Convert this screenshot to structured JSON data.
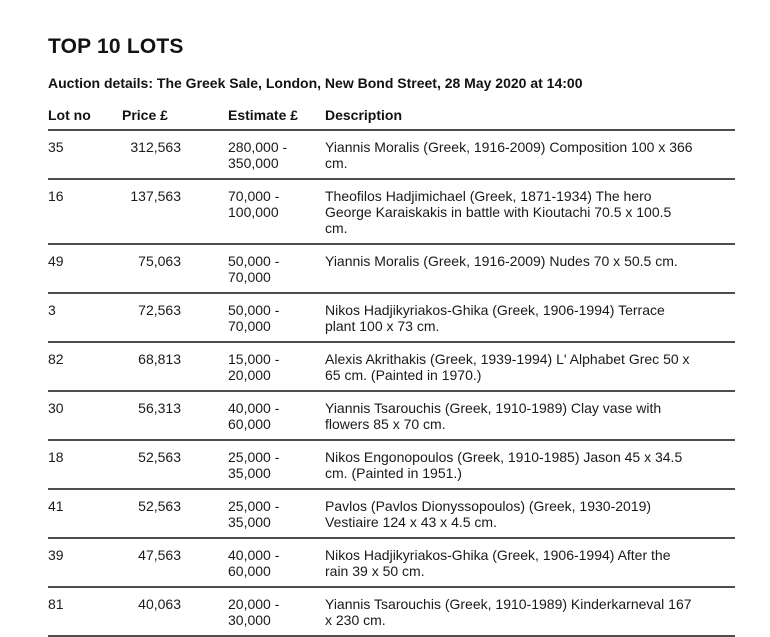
{
  "page": {
    "title": "TOP 10 LOTS",
    "auction_details": "Auction details: The Greek Sale, London, New Bond Street, 28 May 2020 at 14:00"
  },
  "table": {
    "columns": {
      "lot_no": "Lot no",
      "price": "Price £",
      "estimate": "Estimate £",
      "description": "Description"
    },
    "rows": [
      {
        "lot_no": "35",
        "price": "312,563",
        "estimate": "280,000 - 350,000",
        "description": "Yiannis Moralis (Greek, 1916-2009) Composition 100 x 366 cm."
      },
      {
        "lot_no": "16",
        "price": "137,563",
        "estimate": "70,000 - 100,000",
        "description": "Theofilos Hadjimichael (Greek, 1871-1934) The hero George Karaiskakis in battle with Kioutachi 70.5 x 100.5 cm."
      },
      {
        "lot_no": "49",
        "price": "75,063",
        "estimate": "50,000 - 70,000",
        "description": "Yiannis Moralis (Greek, 1916-2009) Nudes 70 x 50.5 cm."
      },
      {
        "lot_no": "3",
        "price": "72,563",
        "estimate": "50,000 - 70,000",
        "description": "Nikos Hadjikyriakos-Ghika (Greek, 1906-1994) Terrace plant 100 x 73 cm."
      },
      {
        "lot_no": "82",
        "price": "68,813",
        "estimate": "15,000 - 20,000",
        "description": "Alexis Akrithakis (Greek, 1939-1994) L' Alphabet Grec 50 x 65 cm. (Painted in 1970.)"
      },
      {
        "lot_no": "30",
        "price": "56,313",
        "estimate": "40,000 - 60,000",
        "description": "Yiannis Tsarouchis (Greek, 1910-1989) Clay vase with flowers 85 x 70 cm."
      },
      {
        "lot_no": "18",
        "price": "52,563",
        "estimate": "25,000 - 35,000",
        "description": "Nikos Engonopoulos (Greek, 1910-1985) Jason 45 x 34.5 cm. (Painted in 1951.)"
      },
      {
        "lot_no": "41",
        "price": "52,563",
        "estimate": "25,000 - 35,000",
        "description": "Pavlos (Pavlos Dionyssopoulos) (Greek, 1930-2019) Vestiaire 124 x 43 x 4.5 cm."
      },
      {
        "lot_no": "39",
        "price": "47,563",
        "estimate": "40,000 - 60,000",
        "description": "Nikos Hadjikyriakos-Ghika (Greek, 1906-1994) After the rain 39 x 50 cm."
      },
      {
        "lot_no": "81",
        "price": "40,063",
        "estimate": "20,000 - 30,000",
        "description": "Yiannis Tsarouchis (Greek, 1910-1989) Kinderkarneval 167 x 230 cm."
      }
    ]
  }
}
